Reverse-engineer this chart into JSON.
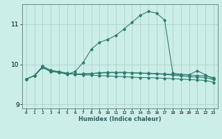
{
  "xlabel": "Humidex (Indice chaleur)",
  "ylabel": "",
  "background_color": "#cceee8",
  "grid_color": "#aacccc",
  "line_color": "#2e7d6e",
  "xlim": [
    -0.5,
    23.5
  ],
  "ylim": [
    8.9,
    11.5
  ],
  "xtick_labels": [
    "0",
    "1",
    "2",
    "3",
    "4",
    "5",
    "6",
    "7",
    "8",
    "9",
    "10",
    "11",
    "12",
    "13",
    "14",
    "15",
    "16",
    "17",
    "18",
    "19",
    "20",
    "21",
    "22",
    "23"
  ],
  "yticks": [
    9,
    10,
    11
  ],
  "series": [
    [
      9.63,
      9.72,
      9.95,
      9.85,
      9.8,
      9.75,
      9.82,
      10.05,
      10.38,
      10.55,
      10.62,
      10.72,
      10.88,
      11.05,
      11.22,
      11.32,
      11.28,
      11.1,
      9.78,
      9.75,
      9.74,
      9.84,
      9.74,
      9.63
    ],
    [
      9.63,
      9.72,
      9.92,
      9.82,
      9.8,
      9.77,
      9.76,
      9.76,
      9.77,
      9.78,
      9.79,
      9.79,
      9.79,
      9.79,
      9.78,
      9.78,
      9.77,
      9.76,
      9.75,
      9.74,
      9.73,
      9.72,
      9.71,
      9.67
    ],
    [
      9.63,
      9.72,
      9.92,
      9.82,
      9.8,
      9.77,
      9.75,
      9.74,
      9.73,
      9.72,
      9.71,
      9.7,
      9.69,
      9.68,
      9.67,
      9.67,
      9.66,
      9.65,
      9.64,
      9.63,
      9.62,
      9.61,
      9.6,
      9.55
    ],
    [
      9.63,
      9.72,
      9.95,
      9.85,
      9.82,
      9.78,
      9.75,
      9.76,
      9.77,
      9.79,
      9.8,
      9.8,
      9.8,
      9.79,
      9.78,
      9.77,
      9.76,
      9.75,
      9.73,
      9.71,
      9.69,
      9.68,
      9.67,
      9.62
    ]
  ]
}
